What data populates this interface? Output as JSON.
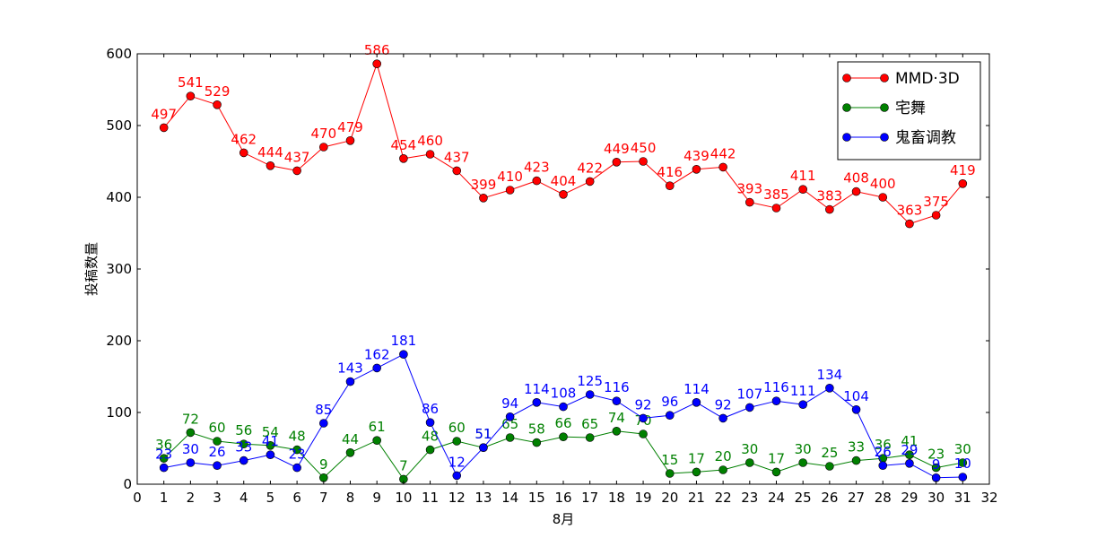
{
  "chart_data": {
    "type": "line",
    "xlabel": "8月",
    "ylabel": "投稿数量",
    "xlim": [
      0,
      32
    ],
    "ylim": [
      0,
      600
    ],
    "xticks": [
      0,
      1,
      2,
      3,
      4,
      5,
      6,
      7,
      8,
      9,
      10,
      11,
      12,
      13,
      14,
      15,
      16,
      17,
      18,
      19,
      20,
      21,
      22,
      23,
      24,
      25,
      26,
      27,
      28,
      29,
      30,
      31,
      32
    ],
    "yticks": [
      0,
      100,
      200,
      300,
      400,
      500,
      600
    ],
    "grid": false,
    "legend_position": "top-right",
    "x": [
      1,
      2,
      3,
      4,
      5,
      6,
      7,
      8,
      9,
      10,
      11,
      12,
      13,
      14,
      15,
      16,
      17,
      18,
      19,
      20,
      21,
      22,
      23,
      24,
      25,
      26,
      27,
      28,
      29,
      30,
      31
    ],
    "series": [
      {
        "name": "MMD·3D",
        "color": "#ff0000",
        "values": [
          497,
          541,
          529,
          462,
          444,
          437,
          470,
          479,
          586,
          454,
          460,
          437,
          399,
          410,
          423,
          404,
          422,
          449,
          450,
          416,
          439,
          442,
          393,
          385,
          411,
          383,
          408,
          400,
          363,
          375,
          419
        ]
      },
      {
        "name": "宅舞",
        "color": "#008000",
        "values": [
          36,
          72,
          60,
          56,
          54,
          48,
          9,
          44,
          61,
          7,
          48,
          60,
          51,
          65,
          58,
          66,
          65,
          74,
          70,
          15,
          17,
          20,
          30,
          17,
          30,
          25,
          33,
          36,
          41,
          23,
          30
        ]
      },
      {
        "name": "鬼畜调教",
        "color": "#0000ff",
        "values": [
          23,
          30,
          26,
          33,
          41,
          23,
          85,
          143,
          162,
          181,
          86,
          12,
          51,
          94,
          114,
          108,
          125,
          116,
          92,
          96,
          114,
          92,
          107,
          116,
          111,
          134,
          104,
          26,
          29,
          9,
          10
        ]
      }
    ]
  }
}
